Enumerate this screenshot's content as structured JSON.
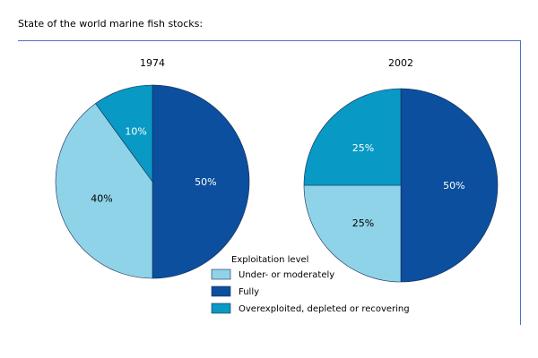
{
  "title": "State of the world marine fish stocks:",
  "chart_data": [
    {
      "type": "pie",
      "title": "1974",
      "slices": [
        {
          "category": "Fully",
          "value": 50,
          "label": "50%"
        },
        {
          "category": "Under- or moderately",
          "value": 40,
          "label": "40%"
        },
        {
          "category": "Overexploited, depleted or recovering",
          "value": 10,
          "label": "10%"
        }
      ]
    },
    {
      "type": "pie",
      "title": "2002",
      "slices": [
        {
          "category": "Fully",
          "value": 50,
          "label": "50%"
        },
        {
          "category": "Under- or moderately",
          "value": 25,
          "label": "25%"
        },
        {
          "category": "Overexploited, depleted or recovering",
          "value": 25,
          "label": "25%"
        }
      ]
    }
  ],
  "legend": {
    "title": "Exploitation level",
    "items": [
      {
        "label": "Under- or moderately",
        "color": "#8fd3e8"
      },
      {
        "label": "Fully",
        "color": "#0b4f9e"
      },
      {
        "label": "Overexploited, depleted or recovering",
        "color": "#0899c4"
      }
    ]
  },
  "colors": {
    "frame": "#4a72c4",
    "slice_stroke": "#1a2a55",
    "label_on_dark": "#ffffff",
    "label_on_light": "#000000"
  }
}
